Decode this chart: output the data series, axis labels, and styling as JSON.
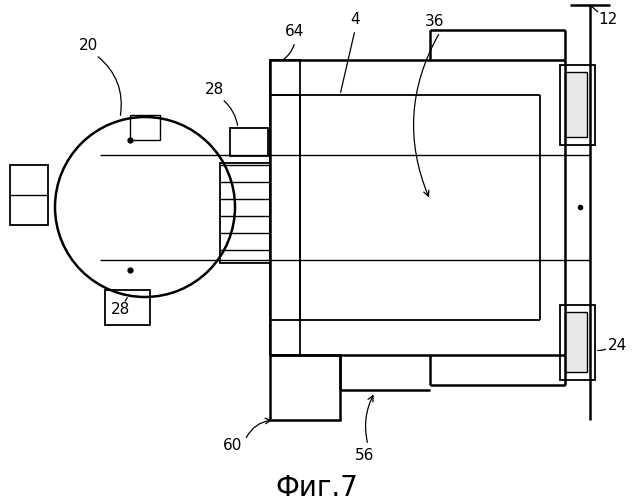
{
  "title": "Фиг.7",
  "background_color": "#ffffff",
  "line_color": "#000000",
  "figure_size": [
    6.35,
    5.0
  ],
  "dpi": 100
}
